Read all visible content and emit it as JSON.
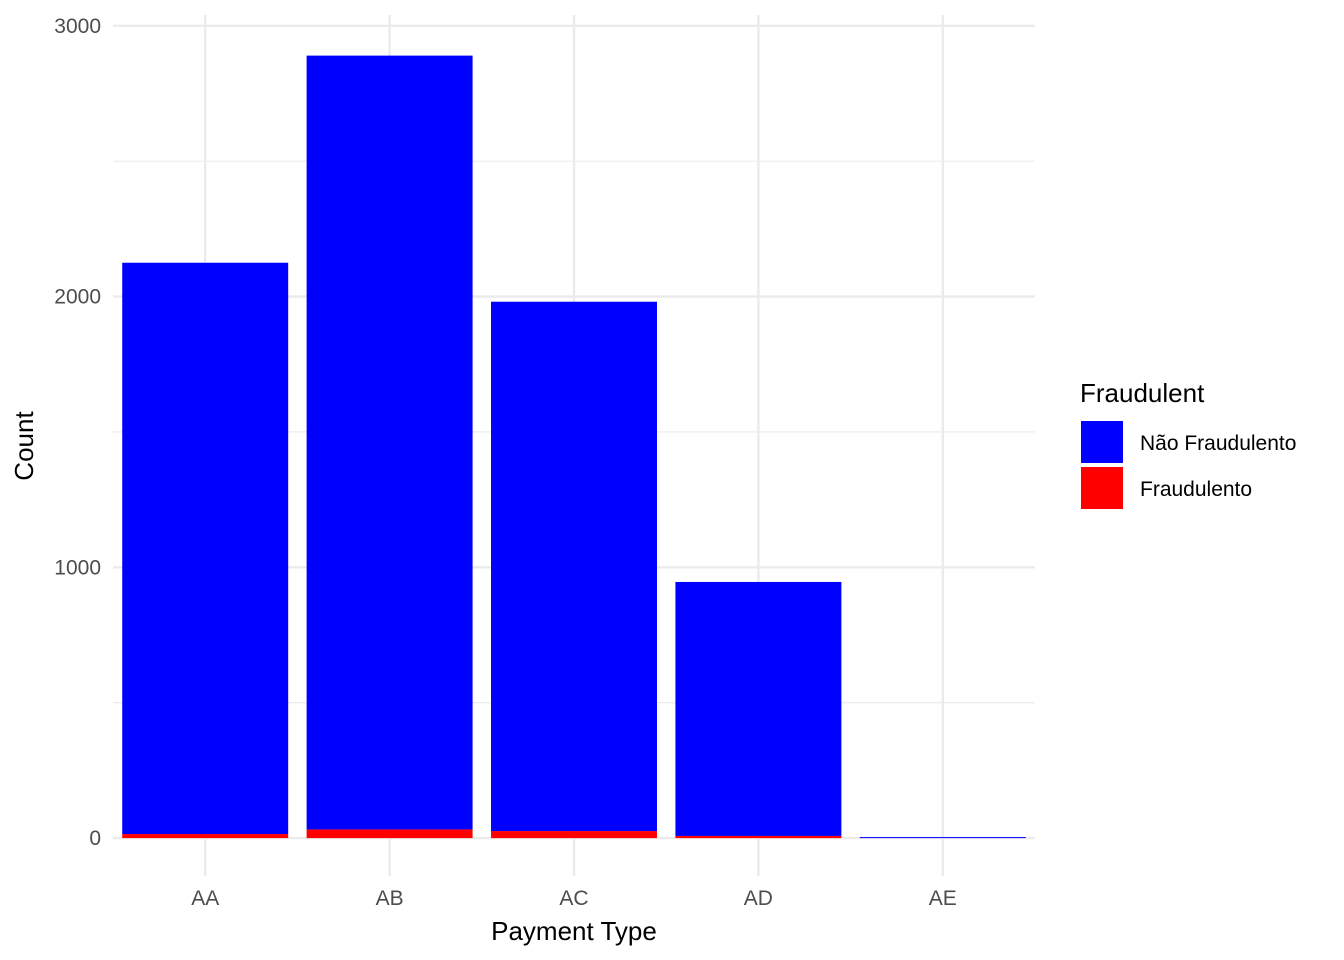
{
  "chart_data": {
    "type": "bar",
    "stacked": true,
    "categories": [
      "AA",
      "AB",
      "AC",
      "AD",
      "AE"
    ],
    "series": [
      {
        "name": "Fraudulento",
        "color": "#ff0000",
        "values": [
          15,
          32,
          26,
          8,
          0
        ]
      },
      {
        "name": "Não Fraudulento",
        "color": "#0000ff",
        "values": [
          2110,
          2858,
          1955,
          938,
          3
        ]
      }
    ],
    "xlabel": "Payment Type",
    "ylabel": "Count",
    "ylim": [
      -140,
      3040
    ],
    "yticks": [
      0,
      1000,
      2000,
      3000
    ],
    "grid": true,
    "legend": {
      "title": "Fraudulent",
      "placement": "right",
      "items": [
        {
          "label": "Não Fraudulento",
          "color": "#0000ff"
        },
        {
          "label": "Fraudulento",
          "color": "#ff0000"
        }
      ]
    }
  }
}
